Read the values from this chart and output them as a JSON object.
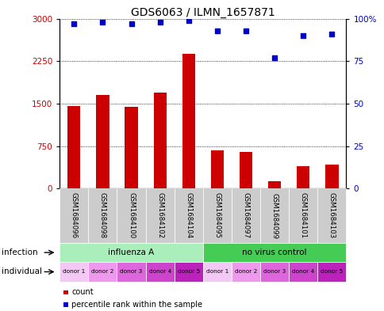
{
  "title": "GDS6063 / ILMN_1657871",
  "samples": [
    "GSM1684096",
    "GSM1684098",
    "GSM1684100",
    "GSM1684102",
    "GSM1684104",
    "GSM1684095",
    "GSM1684097",
    "GSM1684099",
    "GSM1684101",
    "GSM1684103"
  ],
  "counts": [
    1450,
    1650,
    1440,
    1700,
    2380,
    680,
    640,
    130,
    390,
    420
  ],
  "percentiles": [
    97,
    98,
    97,
    98,
    99,
    93,
    93,
    77,
    90,
    91
  ],
  "ylim_left": [
    0,
    3000
  ],
  "ylim_right": [
    0,
    100
  ],
  "yticks_left": [
    0,
    750,
    1500,
    2250,
    3000
  ],
  "yticks_right": [
    0,
    25,
    50,
    75,
    100
  ],
  "ytick_labels_left": [
    "0",
    "750",
    "1500",
    "2250",
    "3000"
  ],
  "ytick_labels_right": [
    "0",
    "25",
    "50",
    "75",
    "100%"
  ],
  "bar_color": "#cc0000",
  "dot_color": "#0000cc",
  "infection_groups": [
    {
      "label": "influenza A",
      "start": 0,
      "end": 5,
      "color": "#aaeebb"
    },
    {
      "label": "no virus control",
      "start": 5,
      "end": 10,
      "color": "#44cc55"
    }
  ],
  "donors": [
    "donor 1",
    "donor 2",
    "donor 3",
    "donor 4",
    "donor 5",
    "donor 1",
    "donor 2",
    "donor 3",
    "donor 4",
    "donor 5"
  ],
  "donor_colors": [
    "#f4c8f4",
    "#ee99ee",
    "#dd66dd",
    "#cc44cc",
    "#bb22bb",
    "#f4c8f4",
    "#ee99ee",
    "#dd66dd",
    "#cc44cc",
    "#bb22bb"
  ],
  "sample_box_color": "#cccccc",
  "legend_count_color": "#cc0000",
  "legend_percentile_color": "#0000cc",
  "infection_row_label": "infection",
  "individual_row_label": "individual",
  "bar_width": 0.45,
  "grid_color": "#000000",
  "title_fontsize": 10,
  "tick_fontsize": 7.5,
  "label_fontsize": 7.5,
  "annotation_fontsize": 7
}
